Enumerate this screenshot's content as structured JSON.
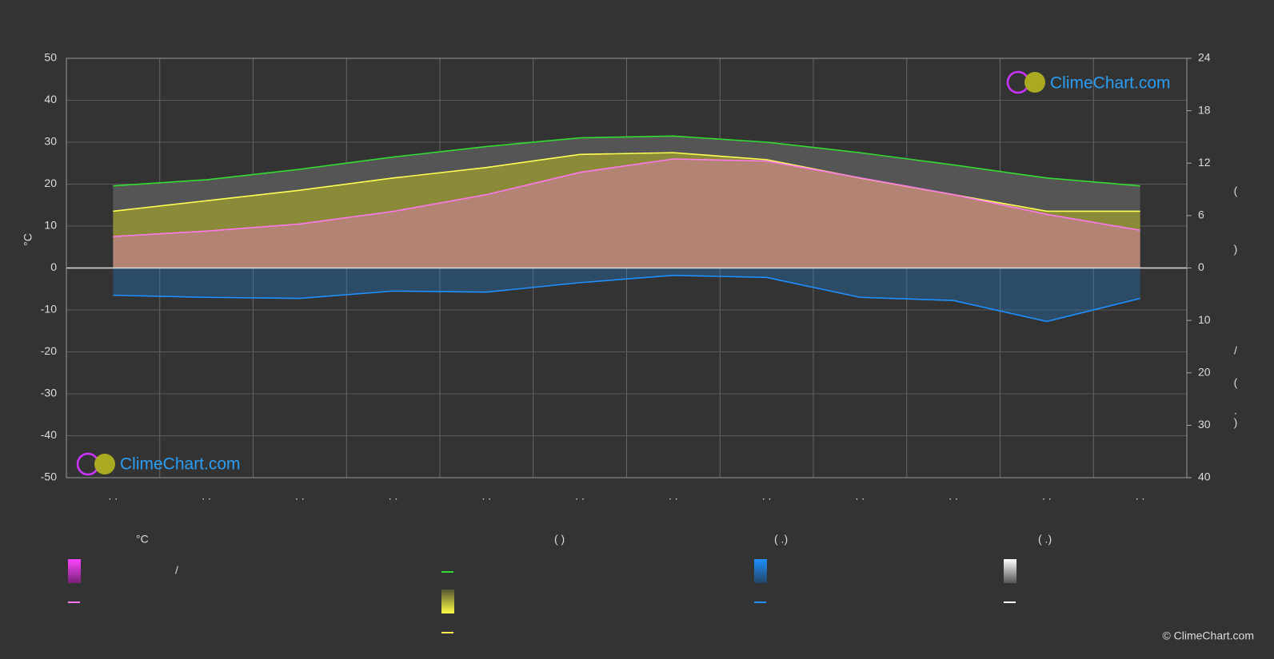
{
  "chart_data": {
    "type": "line",
    "y_label": "°C",
    "y2_label_parts": [
      "(",
      ")",
      "/",
      "(",
      "·",
      ")"
    ],
    "categories": [
      ". .",
      ". .",
      ". .",
      ". .",
      ". .",
      ". .",
      ". .",
      ". .",
      ". .",
      ". .",
      ". .",
      ". ."
    ],
    "ylim": [
      -50,
      50
    ],
    "yticks": [
      -50,
      -40,
      -30,
      -20,
      -10,
      0,
      10,
      20,
      30,
      40,
      50
    ],
    "y2lim": [
      0,
      24
    ],
    "y2ticks": [
      0,
      6,
      12,
      18,
      24
    ],
    "y3lim": [
      0,
      40
    ],
    "y3ticks": [
      10,
      20,
      30,
      40
    ],
    "grid": true,
    "series": [
      {
        "color": "#33dd33",
        "axis": "y2",
        "values": [
          9.4,
          10.1,
          11.3,
          12.7,
          13.9,
          14.9,
          15.1,
          14.4,
          13.2,
          11.8,
          10.3,
          9.4
        ]
      },
      {
        "color": "#ffff55",
        "axis": "y2",
        "values": [
          6.5,
          7.7,
          8.9,
          10.3,
          11.5,
          13.0,
          13.2,
          12.4,
          10.3,
          8.4,
          6.5,
          6.5
        ]
      },
      {
        "color": "#ff77ee",
        "axis": "y",
        "values": [
          7.5,
          8.8,
          10.5,
          13.5,
          17.5,
          22.8,
          26,
          25.5,
          21.5,
          17.5,
          12.8,
          9
        ]
      },
      {
        "color": "#1e90ff",
        "axis": "y3",
        "values": [
          5.2,
          5.6,
          5.8,
          4.4,
          4.6,
          2.8,
          1.4,
          1.8,
          5.6,
          6.2,
          10.2,
          5.8
        ]
      }
    ],
    "legend": {
      "headers": [
        "°C",
        "(          )",
        "(   .)",
        "(   .)"
      ],
      "slash": "/"
    }
  },
  "logo": "ClimeChart.com",
  "copyright": "© ClimeChart.com"
}
